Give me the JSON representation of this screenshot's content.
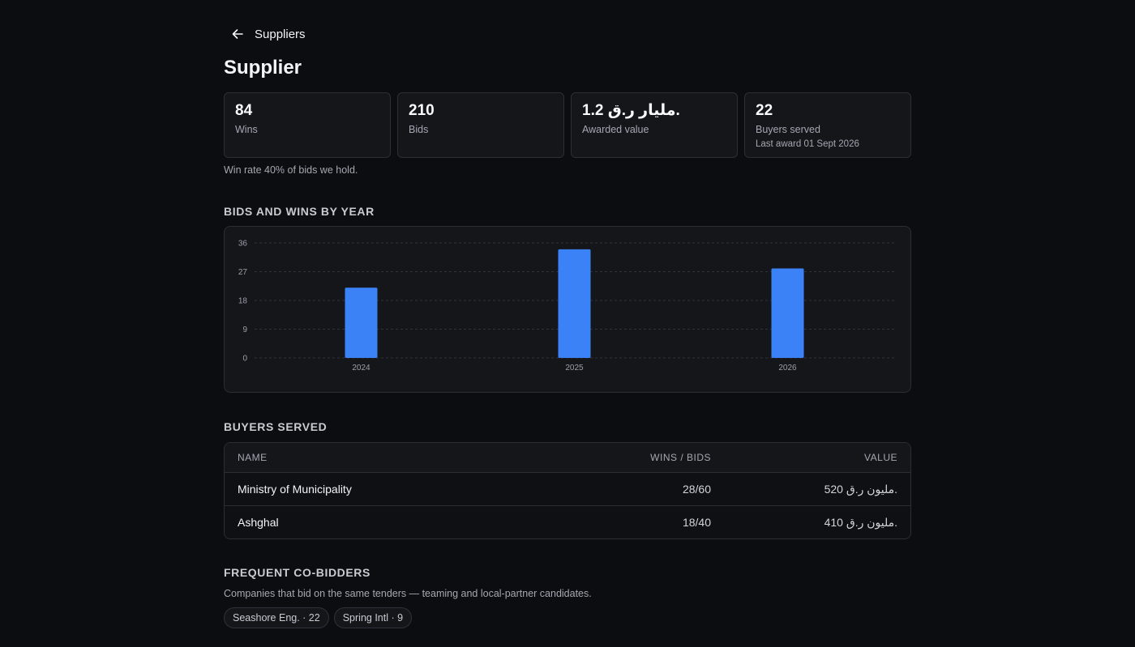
{
  "nav": {
    "back_label": "Suppliers"
  },
  "page": {
    "title": "Supplier"
  },
  "stats": [
    {
      "value": "84",
      "label": "Wins"
    },
    {
      "value": "210",
      "label": "Bids"
    },
    {
      "value": "1.2 مليار ر.ق.",
      "label": "Awarded value"
    },
    {
      "value": "22",
      "label": "Buyers served",
      "sub": "Last award 01 Sept 2026"
    }
  ],
  "win_rate_note": "Win rate 40% of bids we hold.",
  "chart_section": {
    "title": "BIDS AND WINS BY YEAR"
  },
  "chart_data": {
    "type": "bar",
    "categories": [
      "2024",
      "2025",
      "2026"
    ],
    "values": [
      22,
      34,
      28
    ],
    "ylim": [
      0,
      36
    ],
    "yticks": [
      0,
      9,
      18,
      27,
      36
    ],
    "grid": true,
    "colors": {
      "bar": "#3b82f6",
      "grid": "#2e323a"
    }
  },
  "buyers": {
    "title": "BUYERS SERVED",
    "columns": {
      "name": "NAME",
      "wins_bids": "WINS / BIDS",
      "value": "VALUE"
    },
    "rows": [
      {
        "name": "Ministry of Municipality",
        "wins_bids": "28/60",
        "value": "520 مليون ر.ق."
      },
      {
        "name": "Ashghal",
        "wins_bids": "18/40",
        "value": "410 مليون ر.ق."
      }
    ]
  },
  "cobidders": {
    "title": "FREQUENT CO-BIDDERS",
    "description": "Companies that bid on the same tenders — teaming and local-partner candidates.",
    "chips": [
      {
        "label": "Seashore Eng. · 22"
      },
      {
        "label": "Spring Intl · 9"
      }
    ]
  }
}
